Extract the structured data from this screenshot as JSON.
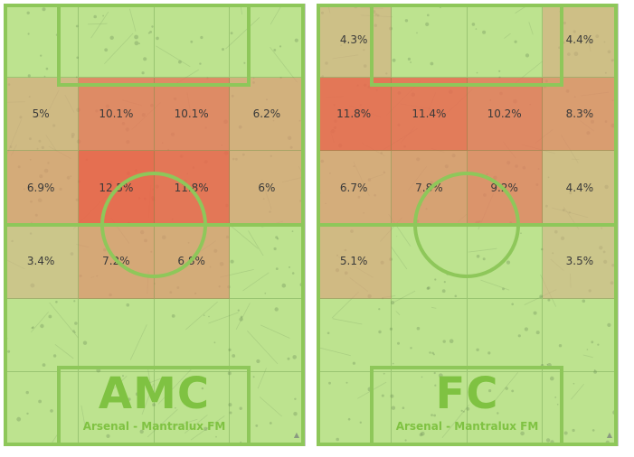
{
  "colors": {
    "pitch": "#bde38f",
    "line": "#8ec75a",
    "text": "#3a3a3a",
    "label": "#7fc242",
    "heat_high": "#ec6a4a",
    "heat_low": "#d6b48a"
  },
  "pitches": [
    {
      "position": "AMC",
      "team": "Arsenal - Mantralux FM",
      "zones": [
        [
          "",
          "",
          "",
          ""
        ],
        [
          "5%",
          "10.1%",
          "10.1%",
          "6.2%"
        ],
        [
          "6.9%",
          "12.5%",
          "11.8%",
          "6%"
        ],
        [
          "3.4%",
          "7.2%",
          "6.8%",
          ""
        ],
        [
          "",
          "",
          "",
          ""
        ],
        [
          "",
          "",
          "",
          ""
        ]
      ]
    },
    {
      "position": "FC",
      "team": "Arsenal - Mantralux FM",
      "zones": [
        [
          "4.3%",
          "",
          "",
          "4.4%"
        ],
        [
          "11.8%",
          "11.4%",
          "10.2%",
          "8.3%"
        ],
        [
          "6.7%",
          "7.8%",
          "9.2%",
          "4.4%"
        ],
        [
          "5.1%",
          "",
          "",
          "3.5%"
        ],
        [
          "",
          "",
          "",
          ""
        ],
        [
          "",
          "",
          "",
          ""
        ]
      ]
    }
  ],
  "icons": {
    "corner": "triangle-icon"
  }
}
